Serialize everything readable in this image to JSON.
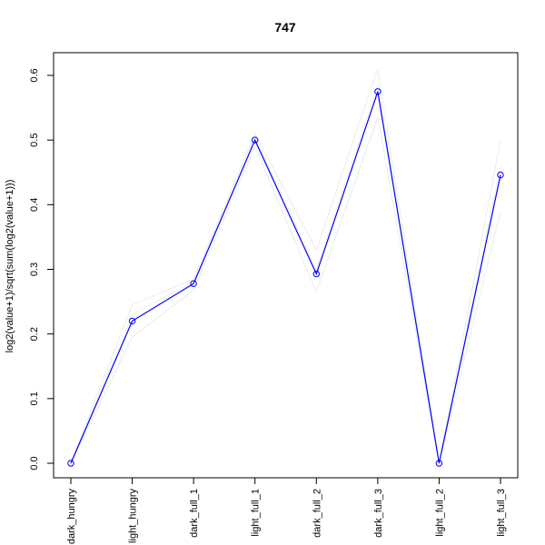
{
  "chart_data": {
    "type": "line",
    "title": "747",
    "xlabel": "",
    "ylabel": "log2(value+1)/sqrt(sum(log2(value+1)))",
    "categories": [
      "dark_hungry",
      "light_hungry",
      "dark_full_1",
      "light_full_1",
      "dark_full_2",
      "dark_full_3",
      "light_full_2",
      "light_full_3"
    ],
    "ylim": [
      -0.02,
      0.64
    ],
    "yticks": [
      "0.0",
      "0.1",
      "0.2",
      "0.3",
      "0.4",
      "0.5",
      "0.6"
    ],
    "grid": false,
    "legend": "none",
    "series": [
      {
        "values": [
          0.0,
          0.22,
          0.278,
          0.5,
          0.293,
          0.575,
          0.0,
          0.446
        ],
        "color": "#0000ff",
        "marker": "open-circle"
      }
    ],
    "background_lines": [
      {
        "values": [
          0.0,
          0.245,
          0.285,
          0.51,
          0.33,
          0.61,
          0.0,
          0.5
        ],
        "color": "#ececec"
      },
      {
        "values": [
          0.0,
          0.195,
          0.268,
          0.49,
          0.265,
          0.535,
          0.0,
          0.39
        ],
        "color": "#ececec"
      },
      {
        "values": [
          0.0,
          0.23,
          0.281,
          0.505,
          0.3,
          0.585,
          0.0,
          0.46
        ],
        "color": "#f0f0f0"
      }
    ]
  }
}
